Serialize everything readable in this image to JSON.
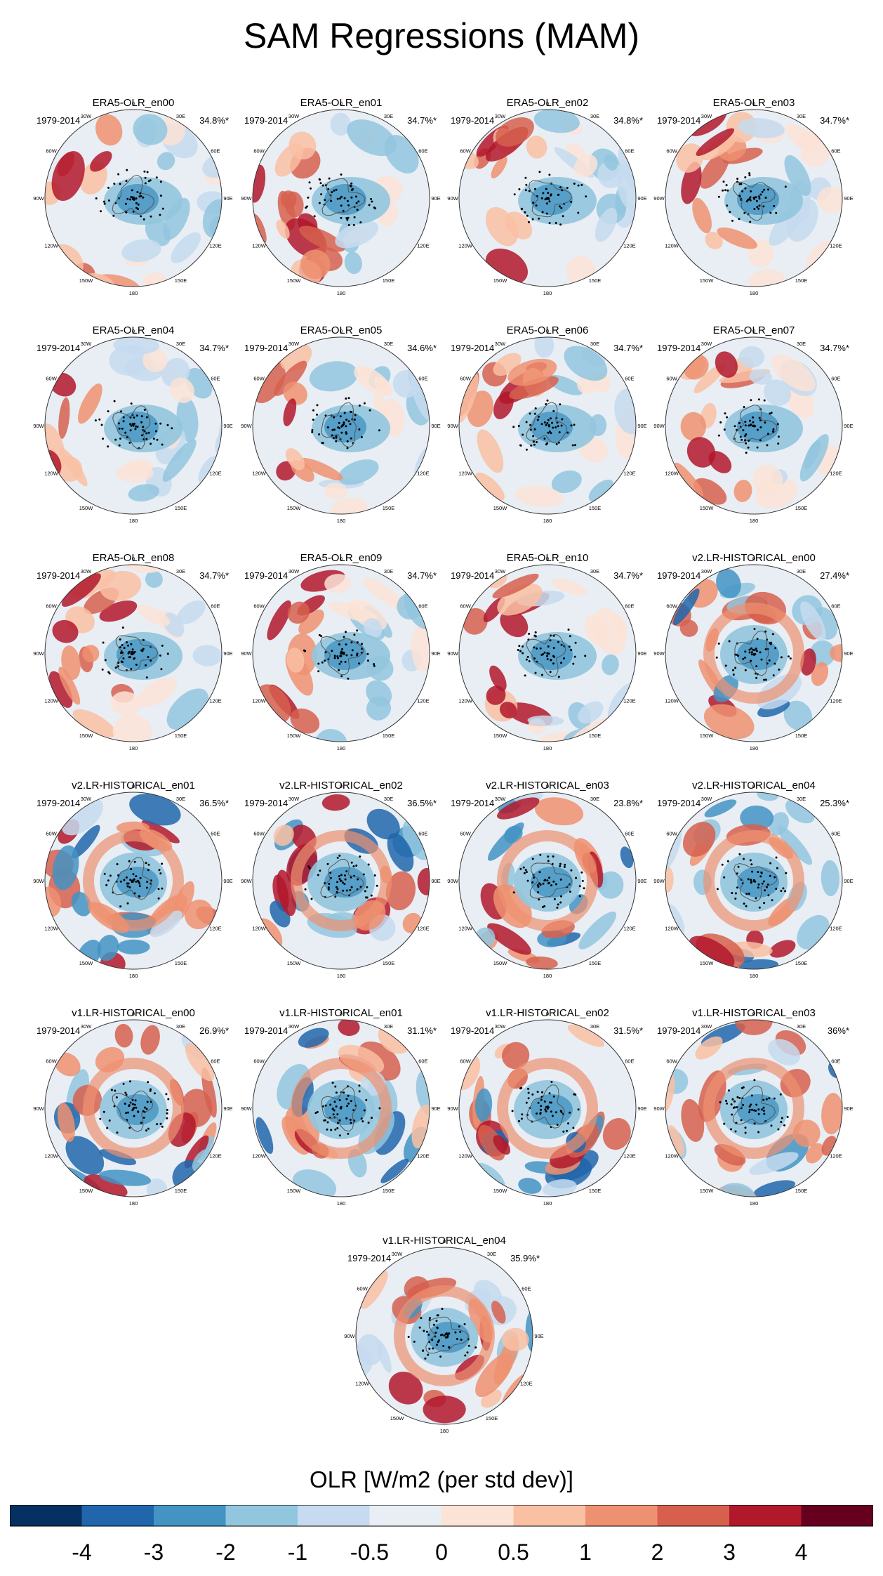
{
  "title": "SAM Regressions (MAM)",
  "colorbar": {
    "label": "OLR [W/m2 (per std dev)]",
    "ticks": [
      "-4",
      "-3",
      "-2",
      "-1",
      "-0.5",
      "0",
      "0.5",
      "1",
      "2",
      "3",
      "4"
    ],
    "colors": [
      "#053061",
      "#2166ac",
      "#4393c3",
      "#92c5de",
      "#c6dbef",
      "#e8eef4",
      "#fbe3d6",
      "#f9c0a3",
      "#ee9170",
      "#d6604d",
      "#b2182b",
      "#67001f"
    ]
  },
  "chart_data": {
    "type": "polar-stereographic map panels",
    "variable": "OLR regression on SAM index",
    "season": "MAM",
    "units": "W/m2 (per std dev)",
    "levels": [
      -4,
      -3,
      -2,
      -1,
      -0.5,
      0,
      0.5,
      1,
      2,
      3,
      4
    ],
    "lon_labels": [
      "0",
      "30E",
      "60E",
      "90E",
      "120E",
      "150E",
      "180",
      "150W",
      "120W",
      "90W",
      "60W",
      "30W"
    ],
    "panels": [
      {
        "title": "ERA5-OLR_en00",
        "period": "1979-2014",
        "variance": "34.8%*"
      },
      {
        "title": "ERA5-OLR_en01",
        "period": "1979-2014",
        "variance": "34.7%*"
      },
      {
        "title": "ERA5-OLR_en02",
        "period": "1979-2014",
        "variance": "34.8%*"
      },
      {
        "title": "ERA5-OLR_en03",
        "period": "1979-2014",
        "variance": "34.7%*"
      },
      {
        "title": "ERA5-OLR_en04",
        "period": "1979-2014",
        "variance": "34.7%*"
      },
      {
        "title": "ERA5-OLR_en05",
        "period": "1979-2014",
        "variance": "34.6%*"
      },
      {
        "title": "ERA5-OLR_en06",
        "period": "1979-2014",
        "variance": "34.7%*"
      },
      {
        "title": "ERA5-OLR_en07",
        "period": "1979-2014",
        "variance": "34.7%*"
      },
      {
        "title": "ERA5-OLR_en08",
        "period": "1979-2014",
        "variance": "34.7%*"
      },
      {
        "title": "ERA5-OLR_en09",
        "period": "1979-2014",
        "variance": "34.7%*"
      },
      {
        "title": "ERA5-OLR_en10",
        "period": "1979-2014",
        "variance": "34.7%*"
      },
      {
        "title": "v2.LR-HISTORICAL_en00",
        "period": "1979-2014",
        "variance": "27.4%*"
      },
      {
        "title": "v2.LR-HISTORICAL_en01",
        "period": "1979-2014",
        "variance": "36.5%*"
      },
      {
        "title": "v2.LR-HISTORICAL_en02",
        "period": "1979-2014",
        "variance": "36.5%*"
      },
      {
        "title": "v2.LR-HISTORICAL_en03",
        "period": "1979-2014",
        "variance": "23.8%*"
      },
      {
        "title": "v2.LR-HISTORICAL_en04",
        "period": "1979-2014",
        "variance": "25.3%*"
      },
      {
        "title": "v1.LR-HISTORICAL_en00",
        "period": "1979-2014",
        "variance": "26.9%*"
      },
      {
        "title": "v1.LR-HISTORICAL_en01",
        "period": "1979-2014",
        "variance": "31.1%*"
      },
      {
        "title": "v1.LR-HISTORICAL_en02",
        "period": "1979-2014",
        "variance": "31.5%*"
      },
      {
        "title": "v1.LR-HISTORICAL_en03",
        "period": "1979-2014",
        "variance": "36%*"
      },
      {
        "title": "v1.LR-HISTORICAL_en04",
        "period": "1979-2014",
        "variance": "35.9%*"
      }
    ]
  }
}
